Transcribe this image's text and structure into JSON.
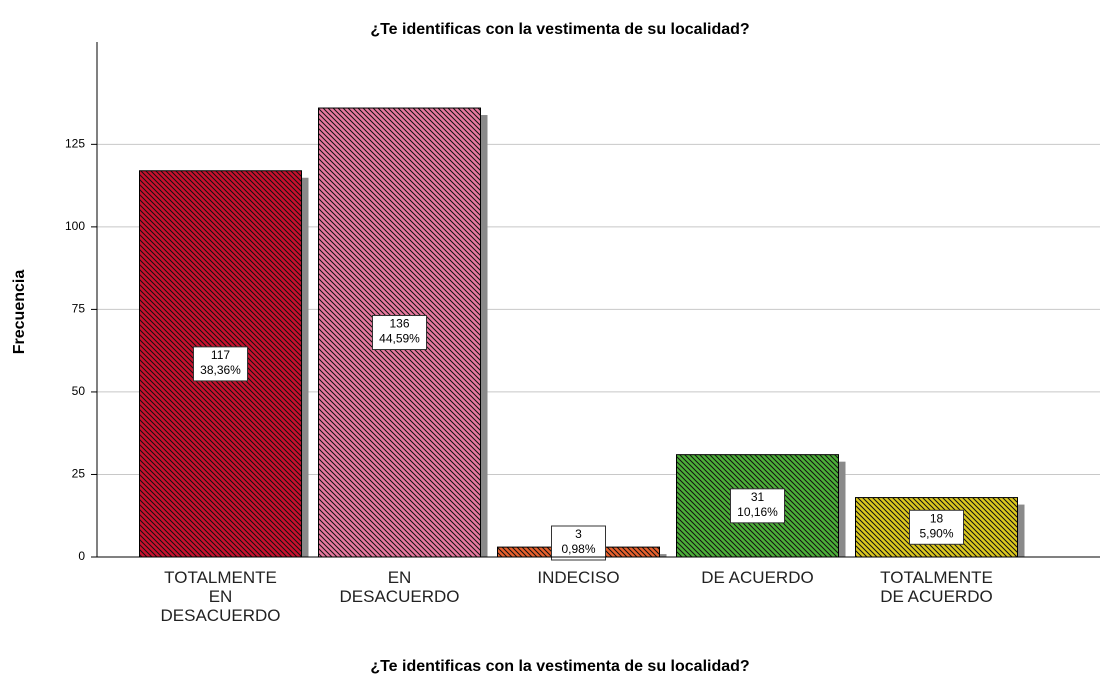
{
  "chart_data": {
    "type": "bar",
    "title": "¿Te identificas con la vestimenta de su localidad?",
    "x_label": "¿Te identificas con la vestimenta de su localidad?",
    "y_label": "Frecuencia",
    "categories": [
      [
        "TOTALMENTE",
        "EN",
        "DESACUERDO"
      ],
      [
        "EN",
        "DESACUERDO"
      ],
      [
        "INDECISO"
      ],
      [
        "DE ACUERDO"
      ],
      [
        "TOTALMENTE",
        "DE ACUERDO"
      ]
    ],
    "values": [
      117,
      136,
      3,
      31,
      18
    ],
    "percentages": [
      "38,36%",
      "44,59%",
      "0,98%",
      "10,16%",
      "5,90%"
    ],
    "colors": [
      "#c8102e",
      "#e8799f",
      "#e8602c",
      "#4caf38",
      "#dcc81e"
    ],
    "ylim": [
      0,
      156
    ],
    "yticks": [
      0,
      25,
      50,
      75,
      100,
      125
    ],
    "grid": true
  }
}
